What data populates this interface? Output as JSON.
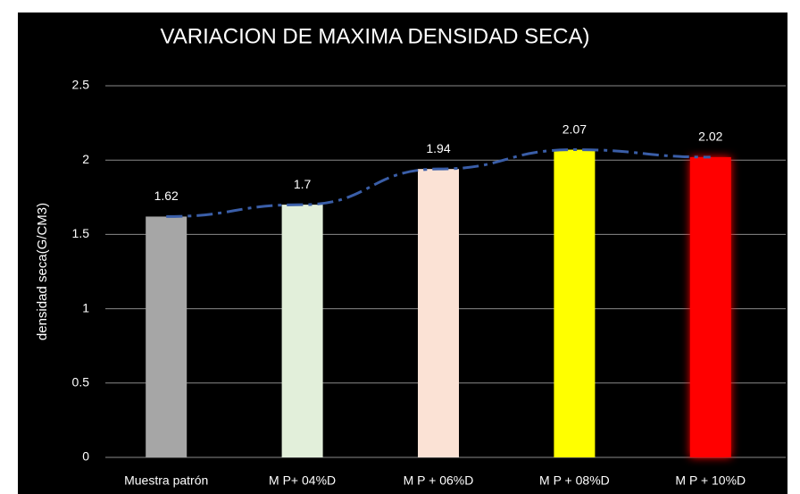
{
  "chart_data": {
    "type": "bar",
    "title": "VARIACION DE MAXIMA DENSIDAD SECA)",
    "y_label": "densidad seca(G/CM3)",
    "categories": [
      "Muestra patrón",
      "M P+ 04%D",
      "M P + 06%D",
      "M P + 08%D",
      "M P + 10%D"
    ],
    "values": [
      1.62,
      1.7,
      1.94,
      2.07,
      2.02
    ],
    "colors": [
      "#a6a6a6",
      "#e2efda",
      "#fbe2d5",
      "#ffff00",
      "#ff0000"
    ],
    "trend_color": "#3a5ea8",
    "ylim": [
      0,
      2.5
    ],
    "yticks": [
      0,
      0.5,
      1,
      1.5,
      2,
      2.5
    ],
    "grid": true
  }
}
